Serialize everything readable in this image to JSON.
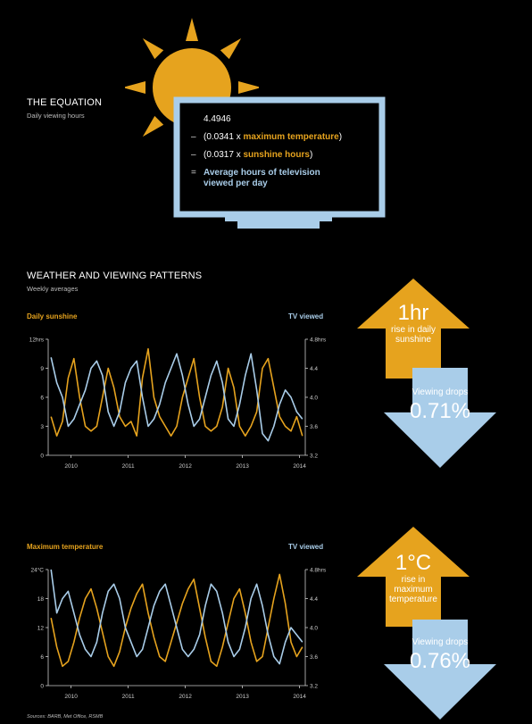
{
  "colors": {
    "gold": "#e6a31e",
    "blue": "#a9cde9",
    "background": "#000000"
  },
  "equation": {
    "title": "THE EQUATION",
    "subtitle": "Daily viewing hours",
    "line1": "4.4946",
    "line2_op": "–",
    "line2_pre": "(0.0341 x ",
    "line2_bold": "maximum temperature",
    "line2_post": ")",
    "line3_op": "–",
    "line3_pre": "(0.0317 x ",
    "line3_bold": "sunshine hours",
    "line3_post": ")",
    "line4_op": "=",
    "line4_bold": "Average hours of television viewed per day"
  },
  "weather_section": {
    "title": "WEATHER AND VIEWING PATTERNS",
    "subtitle": "Weekly averages"
  },
  "arrows": [
    {
      "up_big": "1hr",
      "up_small": "rise in daily sunshine",
      "down_small": "Viewing drops",
      "down_big": "0.71%"
    },
    {
      "up_big": "1°C",
      "up_small": "rise in maximum temperature",
      "down_small": "Viewing drops",
      "down_big": "0.76%"
    }
  ],
  "source": "Sources: BARB, Met Office, RSMB",
  "chart_data": [
    {
      "type": "line",
      "left_label": "Daily sunshine",
      "right_label": "TV viewed",
      "x_ticks": [
        "2010",
        "2011",
        "2012",
        "2013",
        "2014"
      ],
      "x_range": [
        2009.6,
        2014.1
      ],
      "y_left_ticks": [
        "0",
        "3",
        "6",
        "9",
        "12hrs"
      ],
      "y_left_range": [
        0,
        12
      ],
      "y_right_ticks": [
        "3.2",
        "3.6",
        "4.0",
        "4.4",
        "4.8hrs"
      ],
      "y_right_range": [
        3.2,
        4.8
      ],
      "series": [
        {
          "name": "Daily sunshine",
          "axis": "left",
          "color": "#e6a31e",
          "x": [
            2009.65,
            2009.75,
            2009.85,
            2009.95,
            2010.05,
            2010.15,
            2010.25,
            2010.35,
            2010.45,
            2010.55,
            2010.65,
            2010.75,
            2010.85,
            2010.95,
            2011.05,
            2011.15,
            2011.25,
            2011.35,
            2011.45,
            2011.55,
            2011.65,
            2011.75,
            2011.85,
            2011.95,
            2012.05,
            2012.15,
            2012.25,
            2012.35,
            2012.45,
            2012.55,
            2012.65,
            2012.75,
            2012.85,
            2012.95,
            2013.05,
            2013.15,
            2013.25,
            2013.35,
            2013.45,
            2013.55,
            2013.65,
            2013.75,
            2013.85,
            2013.95,
            2014.05
          ],
          "values": [
            4,
            2,
            3.5,
            8,
            10,
            6,
            3,
            2.5,
            3,
            6,
            9,
            7,
            4,
            3,
            3.5,
            2,
            8,
            11,
            6,
            4,
            3,
            2,
            3,
            6,
            8,
            10,
            6,
            3,
            2.5,
            3,
            5,
            9,
            7,
            3,
            2,
            3,
            4.5,
            9,
            10,
            7,
            4,
            3,
            2.5,
            4,
            2
          ]
        },
        {
          "name": "TV viewed",
          "axis": "right",
          "color": "#a9cde9",
          "x": [
            2009.65,
            2009.75,
            2009.85,
            2009.95,
            2010.05,
            2010.15,
            2010.25,
            2010.35,
            2010.45,
            2010.55,
            2010.65,
            2010.75,
            2010.85,
            2010.95,
            2011.05,
            2011.15,
            2011.25,
            2011.35,
            2011.45,
            2011.55,
            2011.65,
            2011.75,
            2011.85,
            2011.95,
            2012.05,
            2012.15,
            2012.25,
            2012.35,
            2012.45,
            2012.55,
            2012.65,
            2012.75,
            2012.85,
            2012.95,
            2013.05,
            2013.15,
            2013.25,
            2013.35,
            2013.45,
            2013.55,
            2013.65,
            2013.75,
            2013.85,
            2013.95,
            2014.05
          ],
          "values": [
            4.55,
            4.2,
            4.0,
            3.6,
            3.7,
            3.9,
            4.1,
            4.4,
            4.5,
            4.3,
            3.8,
            3.6,
            3.8,
            4.2,
            4.4,
            4.5,
            4.0,
            3.6,
            3.7,
            3.9,
            4.2,
            4.4,
            4.6,
            4.3,
            3.9,
            3.6,
            3.7,
            4.0,
            4.3,
            4.5,
            4.2,
            3.7,
            3.6,
            3.9,
            4.3,
            4.6,
            4.1,
            3.5,
            3.4,
            3.6,
            3.9,
            4.1,
            4.0,
            3.8,
            3.7
          ]
        }
      ]
    },
    {
      "type": "line",
      "left_label": "Maximum temperature",
      "right_label": "TV viewed",
      "x_ticks": [
        "2010",
        "2011",
        "2012",
        "2013",
        "2014"
      ],
      "x_range": [
        2009.6,
        2014.1
      ],
      "y_left_ticks": [
        "0",
        "6",
        "12",
        "18",
        "24°C"
      ],
      "y_left_range": [
        0,
        24
      ],
      "y_right_ticks": [
        "3.2",
        "3.6",
        "4.0",
        "4.4",
        "4.8hrs"
      ],
      "y_right_range": [
        3.2,
        4.8
      ],
      "series": [
        {
          "name": "Maximum temperature",
          "axis": "left",
          "color": "#e6a31e",
          "x": [
            2009.65,
            2009.75,
            2009.85,
            2009.95,
            2010.05,
            2010.15,
            2010.25,
            2010.35,
            2010.45,
            2010.55,
            2010.65,
            2010.75,
            2010.85,
            2010.95,
            2011.05,
            2011.15,
            2011.25,
            2011.35,
            2011.45,
            2011.55,
            2011.65,
            2011.75,
            2011.85,
            2011.95,
            2012.05,
            2012.15,
            2012.25,
            2012.35,
            2012.45,
            2012.55,
            2012.65,
            2012.75,
            2012.85,
            2012.95,
            2013.05,
            2013.15,
            2013.25,
            2013.35,
            2013.45,
            2013.55,
            2013.65,
            2013.75,
            2013.85,
            2013.95,
            2014.05
          ],
          "values": [
            14,
            8,
            4,
            5,
            9,
            14,
            18,
            20,
            16,
            11,
            6,
            4,
            7,
            12,
            16,
            19,
            21,
            15,
            10,
            6,
            5,
            9,
            13,
            17,
            20,
            22,
            16,
            10,
            5,
            4,
            8,
            13,
            18,
            20,
            15,
            9,
            5,
            6,
            12,
            18,
            23,
            17,
            9,
            6,
            8
          ]
        },
        {
          "name": "TV viewed",
          "axis": "right",
          "color": "#a9cde9",
          "x": [
            2009.65,
            2009.75,
            2009.85,
            2009.95,
            2010.05,
            2010.15,
            2010.25,
            2010.35,
            2010.45,
            2010.55,
            2010.65,
            2010.75,
            2010.85,
            2010.95,
            2011.05,
            2011.15,
            2011.25,
            2011.35,
            2011.45,
            2011.55,
            2011.65,
            2011.75,
            2011.85,
            2011.95,
            2012.05,
            2012.15,
            2012.25,
            2012.35,
            2012.45,
            2012.55,
            2012.65,
            2012.75,
            2012.85,
            2012.95,
            2013.05,
            2013.15,
            2013.25,
            2013.35,
            2013.45,
            2013.55,
            2013.65,
            2013.75,
            2013.85,
            2013.95,
            2014.05
          ],
          "values": [
            4.8,
            4.2,
            4.4,
            4.5,
            4.2,
            3.9,
            3.7,
            3.6,
            3.8,
            4.2,
            4.5,
            4.6,
            4.4,
            4.0,
            3.8,
            3.6,
            3.7,
            4.0,
            4.3,
            4.5,
            4.6,
            4.3,
            4.0,
            3.7,
            3.6,
            3.7,
            3.9,
            4.3,
            4.6,
            4.5,
            4.2,
            3.8,
            3.6,
            3.7,
            4.0,
            4.4,
            4.6,
            4.3,
            3.9,
            3.6,
            3.5,
            3.8,
            4.0,
            3.9,
            3.8
          ]
        }
      ]
    }
  ]
}
